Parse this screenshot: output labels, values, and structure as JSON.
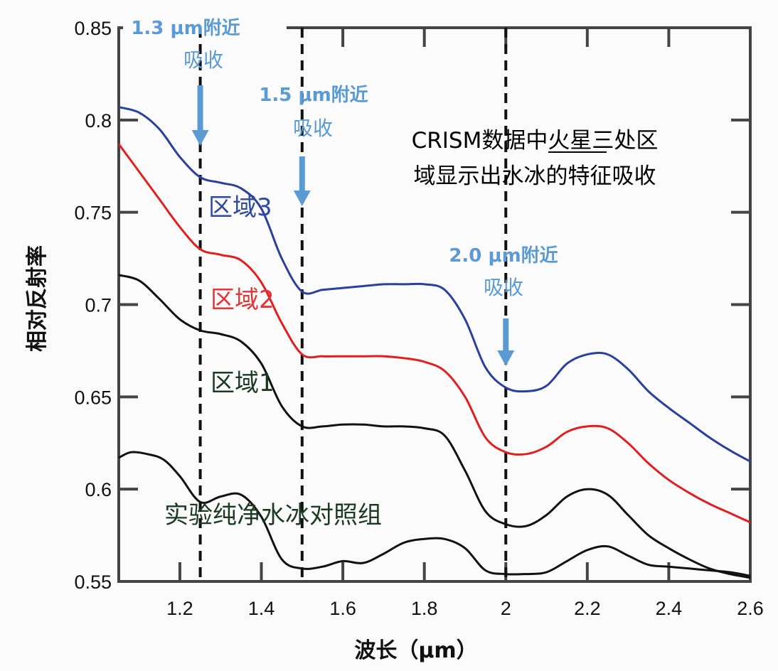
{
  "chart_data": {
    "type": "line",
    "title_lines": [
      "CRISM数据中火星三处区",
      "域显示出水冰的特征吸收"
    ],
    "title_underlined": "火星",
    "xlabel": "波长（μm）",
    "ylabel": "相对反射率",
    "xlim": [
      1.05,
      2.6
    ],
    "ylim": [
      0.55,
      0.85
    ],
    "x_ticks": [
      1.2,
      1.4,
      1.6,
      1.8,
      2.0,
      2.2,
      2.4,
      2.6
    ],
    "x_tick_labels": [
      "1.2",
      "1.4",
      "1.6",
      "1.8",
      "2",
      "2.2",
      "2.4",
      "2.6"
    ],
    "y_ticks": [
      0.55,
      0.6,
      0.65,
      0.7,
      0.75,
      0.8,
      0.85
    ],
    "y_tick_labels": [
      "0.55",
      "0.6",
      "0.65",
      "0.7",
      "0.75",
      "0.8",
      "0.85"
    ],
    "grid": false,
    "vlines": [
      1.25,
      1.5,
      2.0
    ],
    "annotations": [
      {
        "line1": "1.3 μm附近",
        "line2": "吸收",
        "x": 1.25
      },
      {
        "line1": "1.5 μm附近",
        "line2": "吸收",
        "x": 1.5
      },
      {
        "line1": "2.0 μm附近",
        "line2": "吸收",
        "x": 2.0
      }
    ],
    "series": [
      {
        "name": "区域3",
        "color": "#2b3f9e",
        "label_color": "#2f4aa0",
        "x": [
          1.05,
          1.1,
          1.15,
          1.2,
          1.25,
          1.3,
          1.35,
          1.4,
          1.45,
          1.5,
          1.55,
          1.6,
          1.65,
          1.7,
          1.75,
          1.8,
          1.85,
          1.9,
          1.95,
          2.0,
          2.05,
          2.1,
          2.15,
          2.2,
          2.25,
          2.3,
          2.35,
          2.4,
          2.45,
          2.5,
          2.55,
          2.6
        ],
        "values": [
          0.807,
          0.804,
          0.795,
          0.78,
          0.769,
          0.766,
          0.763,
          0.752,
          0.725,
          0.707,
          0.708,
          0.709,
          0.71,
          0.711,
          0.711,
          0.711,
          0.708,
          0.692,
          0.666,
          0.655,
          0.653,
          0.656,
          0.668,
          0.673,
          0.673,
          0.665,
          0.653,
          0.644,
          0.636,
          0.628,
          0.621,
          0.615
        ]
      },
      {
        "name": "区域2",
        "color": "#e02020",
        "label_color": "#e23535",
        "x": [
          1.05,
          1.1,
          1.15,
          1.2,
          1.25,
          1.3,
          1.35,
          1.4,
          1.45,
          1.5,
          1.55,
          1.6,
          1.65,
          1.7,
          1.75,
          1.8,
          1.85,
          1.9,
          1.95,
          2.0,
          2.05,
          2.1,
          2.15,
          2.2,
          2.25,
          2.3,
          2.35,
          2.4,
          2.45,
          2.5,
          2.55,
          2.6
        ],
        "values": [
          0.787,
          0.772,
          0.757,
          0.742,
          0.73,
          0.727,
          0.724,
          0.712,
          0.69,
          0.673,
          0.672,
          0.672,
          0.672,
          0.672,
          0.671,
          0.669,
          0.664,
          0.65,
          0.628,
          0.62,
          0.619,
          0.623,
          0.631,
          0.634,
          0.633,
          0.625,
          0.614,
          0.605,
          0.598,
          0.592,
          0.587,
          0.582
        ]
      },
      {
        "name": "区域1",
        "color": "#111111",
        "label_color": "#1b3a22",
        "x": [
          1.05,
          1.1,
          1.15,
          1.2,
          1.25,
          1.3,
          1.35,
          1.4,
          1.45,
          1.5,
          1.55,
          1.6,
          1.65,
          1.7,
          1.75,
          1.8,
          1.85,
          1.9,
          1.95,
          2.0,
          2.05,
          2.1,
          2.15,
          2.2,
          2.25,
          2.3,
          2.35,
          2.4,
          2.45,
          2.5,
          2.55,
          2.6
        ],
        "values": [
          0.716,
          0.713,
          0.703,
          0.692,
          0.686,
          0.684,
          0.68,
          0.668,
          0.645,
          0.634,
          0.634,
          0.635,
          0.635,
          0.634,
          0.634,
          0.633,
          0.629,
          0.61,
          0.588,
          0.581,
          0.58,
          0.586,
          0.596,
          0.6,
          0.597,
          0.586,
          0.575,
          0.568,
          0.562,
          0.557,
          0.554,
          0.552
        ]
      },
      {
        "name": "实验纯净水冰对照组",
        "color": "#111111",
        "label_color": "#1b3a22",
        "x": [
          1.05,
          1.08,
          1.12,
          1.16,
          1.2,
          1.25,
          1.3,
          1.35,
          1.4,
          1.45,
          1.5,
          1.55,
          1.6,
          1.65,
          1.7,
          1.75,
          1.8,
          1.85,
          1.9,
          1.95,
          2.0,
          2.05,
          2.1,
          2.15,
          2.2,
          2.25,
          2.3,
          2.35,
          2.4,
          2.45,
          2.5,
          2.55,
          2.6
        ],
        "values": [
          0.617,
          0.62,
          0.619,
          0.616,
          0.607,
          0.593,
          0.596,
          0.597,
          0.585,
          0.562,
          0.557,
          0.558,
          0.561,
          0.56,
          0.565,
          0.571,
          0.573,
          0.573,
          0.568,
          0.556,
          0.554,
          0.554,
          0.555,
          0.561,
          0.567,
          0.569,
          0.564,
          0.559,
          0.558,
          0.557,
          0.556,
          0.555,
          0.553
        ]
      }
    ]
  }
}
